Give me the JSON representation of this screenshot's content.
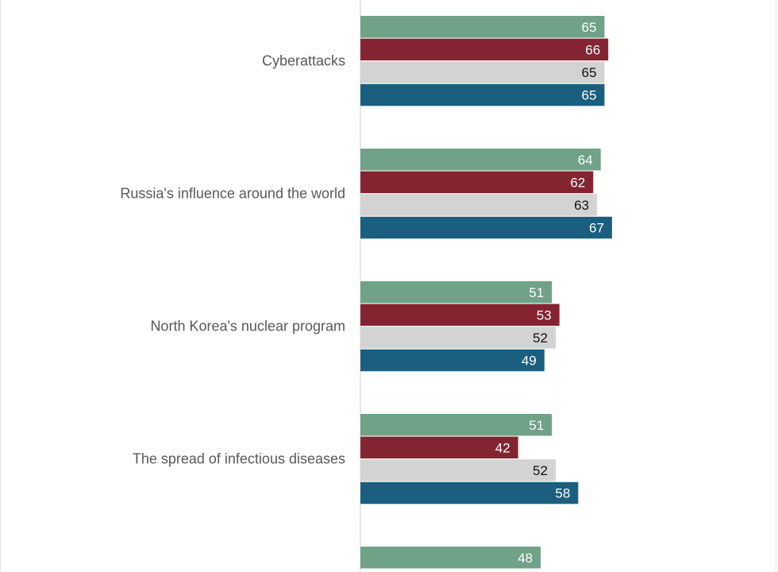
{
  "colors": {
    "series": [
      "#6fa287",
      "#842431",
      "#d3d3d3",
      "#1a5f7f"
    ],
    "value_label_text": [
      "#ffffff",
      "#ffffff",
      "#111111",
      "#ffffff"
    ],
    "category_text": "#595959",
    "axis_line": "#cfcfcf"
  },
  "chart_data": {
    "type": "bar",
    "orientation": "horizontal",
    "grouped": true,
    "categories": [
      "Cyberattacks",
      "Russia's influence around the world",
      "North Korea's nuclear program",
      "The spread of infectious diseases",
      ""
    ],
    "series": [
      {
        "values": [
          65,
          64,
          51,
          51,
          48
        ]
      },
      {
        "values": [
          66,
          62,
          53,
          42,
          null
        ]
      },
      {
        "values": [
          65,
          63,
          52,
          52,
          null
        ]
      },
      {
        "values": [
          65,
          67,
          49,
          58,
          null
        ]
      }
    ],
    "xlim": [
      0,
      100
    ],
    "grid": false,
    "legend": "none"
  }
}
